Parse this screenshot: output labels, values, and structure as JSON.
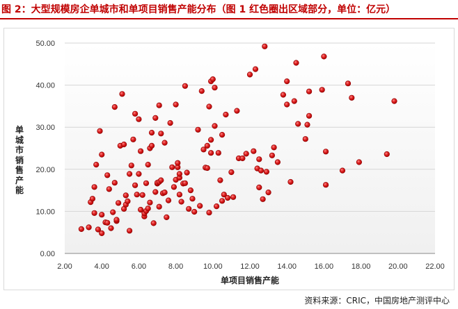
{
  "header": {
    "title": "图 2：大型规模房企单城市和单项目销售产能分布（图 1 红色圈出区域部分，单位：亿元）"
  },
  "source": "资料来源：CRIC，中国房地产测评中心",
  "colors": {
    "title": "#c00000",
    "marker": "#d42020",
    "marker_edge": "#8b0000"
  },
  "chart_data": {
    "type": "scatter",
    "xlabel": "单项目销售产能",
    "ylabel": "单城市销售产能",
    "xlim": [
      2,
      22
    ],
    "ylim": [
      0,
      50
    ],
    "x_ticks": [
      "2.00",
      "4.00",
      "6.00",
      "8.00",
      "10.00",
      "12.00",
      "14.00",
      "16.00",
      "18.00",
      "20.00",
      "22.00"
    ],
    "y_ticks": [
      "0.00",
      "10.00",
      "20.00",
      "30.00",
      "40.00",
      "50.00"
    ],
    "grid": "horizontal",
    "points": [
      [
        2.9,
        5.8
      ],
      [
        3.3,
        6.2
      ],
      [
        3.4,
        12.2
      ],
      [
        3.5,
        13.0
      ],
      [
        3.6,
        9.6
      ],
      [
        3.6,
        15.8
      ],
      [
        3.7,
        21.1
      ],
      [
        3.8,
        5.7
      ],
      [
        3.9,
        29.1
      ],
      [
        4.0,
        4.8
      ],
      [
        4.0,
        9.2
      ],
      [
        4.0,
        23.5
      ],
      [
        4.2,
        7.4
      ],
      [
        4.3,
        7.3
      ],
      [
        4.3,
        18.6
      ],
      [
        4.4,
        15.3
      ],
      [
        4.5,
        6.0
      ],
      [
        4.6,
        9.8
      ],
      [
        4.7,
        16.8
      ],
      [
        4.7,
        34.8
      ],
      [
        4.8,
        7.7
      ],
      [
        4.8,
        8.0
      ],
      [
        4.9,
        12.0
      ],
      [
        5.0,
        25.6
      ],
      [
        5.1,
        37.9
      ],
      [
        5.2,
        10.6
      ],
      [
        5.2,
        25.9
      ],
      [
        5.3,
        11.6
      ],
      [
        5.3,
        13.8
      ],
      [
        5.4,
        12.4
      ],
      [
        5.5,
        5.4
      ],
      [
        5.5,
        18.9
      ],
      [
        5.6,
        20.9
      ],
      [
        5.7,
        27.1
      ],
      [
        5.8,
        16.2
      ],
      [
        5.8,
        33.2
      ],
      [
        5.9,
        14.0
      ],
      [
        6.0,
        31.9
      ],
      [
        6.0,
        18.9
      ],
      [
        6.1,
        24.3
      ],
      [
        6.1,
        10.4
      ],
      [
        6.2,
        13.9
      ],
      [
        6.3,
        8.8
      ],
      [
        6.3,
        9.5
      ],
      [
        6.4,
        10.1
      ],
      [
        6.4,
        16.7
      ],
      [
        6.5,
        21.1
      ],
      [
        6.5,
        10.7
      ],
      [
        6.6,
        12.1
      ],
      [
        6.6,
        25.0
      ],
      [
        6.7,
        25.6
      ],
      [
        6.7,
        28.7
      ],
      [
        6.8,
        7.2
      ],
      [
        6.9,
        14.6
      ],
      [
        6.9,
        32.2
      ],
      [
        7.0,
        16.6
      ],
      [
        7.0,
        16.8
      ],
      [
        7.1,
        17.0
      ],
      [
        7.1,
        11.1
      ],
      [
        7.1,
        35.2
      ],
      [
        7.2,
        17.4
      ],
      [
        7.2,
        28.5
      ],
      [
        7.3,
        14.3
      ],
      [
        7.4,
        14.5
      ],
      [
        7.4,
        26.3
      ],
      [
        7.5,
        8.6
      ],
      [
        7.6,
        12.6
      ],
      [
        7.7,
        31.0
      ],
      [
        7.8,
        20.5
      ],
      [
        7.9,
        15.8
      ],
      [
        8.0,
        17.5
      ],
      [
        8.0,
        35.4
      ],
      [
        8.1,
        20.5
      ],
      [
        8.1,
        21.5
      ],
      [
        8.2,
        18.0
      ],
      [
        8.2,
        18.9
      ],
      [
        8.2,
        14.0
      ],
      [
        8.3,
        12.3
      ],
      [
        8.4,
        16.6
      ],
      [
        8.5,
        16.7
      ],
      [
        8.5,
        39.8
      ],
      [
        8.6,
        19.2
      ],
      [
        8.7,
        10.6
      ],
      [
        8.8,
        15.0
      ],
      [
        8.9,
        13.0
      ],
      [
        9.0,
        9.9
      ],
      [
        9.2,
        29.4
      ],
      [
        9.3,
        11.3
      ],
      [
        9.4,
        38.6
      ],
      [
        9.5,
        24.7
      ],
      [
        9.6,
        20.4
      ],
      [
        9.7,
        20.3
      ],
      [
        9.7,
        25.6
      ],
      [
        9.8,
        34.9
      ],
      [
        9.8,
        9.7
      ],
      [
        9.9,
        27.0
      ],
      [
        9.9,
        40.9
      ],
      [
        9.9,
        23.9
      ],
      [
        10.0,
        41.4
      ],
      [
        10.1,
        39.4
      ],
      [
        10.1,
        30.3
      ],
      [
        10.2,
        11.2
      ],
      [
        10.3,
        23.9
      ],
      [
        10.4,
        17.4
      ],
      [
        10.5,
        28.2
      ],
      [
        10.5,
        12.5
      ],
      [
        10.6,
        14.0
      ],
      [
        10.7,
        33.0
      ],
      [
        10.8,
        13.2
      ],
      [
        11.0,
        19.3
      ],
      [
        11.1,
        13.4
      ],
      [
        11.3,
        33.9
      ],
      [
        11.4,
        22.6
      ],
      [
        11.6,
        22.6
      ],
      [
        11.8,
        23.7
      ],
      [
        12.0,
        42.5
      ],
      [
        12.2,
        24.3
      ],
      [
        12.3,
        43.8
      ],
      [
        12.4,
        20.2
      ],
      [
        12.5,
        22.4
      ],
      [
        12.5,
        15.7
      ],
      [
        12.6,
        19.7
      ],
      [
        12.7,
        12.9
      ],
      [
        12.8,
        49.2
      ],
      [
        12.9,
        19.4
      ],
      [
        13.0,
        14.5
      ],
      [
        13.2,
        23.3
      ],
      [
        13.3,
        25.2
      ],
      [
        13.5,
        21.7
      ],
      [
        13.8,
        37.7
      ],
      [
        14.0,
        35.4
      ],
      [
        14.0,
        40.9
      ],
      [
        14.2,
        17.0
      ],
      [
        14.4,
        36.2
      ],
      [
        14.5,
        45.3
      ],
      [
        14.6,
        30.8
      ],
      [
        15.0,
        27.2
      ],
      [
        15.1,
        30.6
      ],
      [
        15.2,
        32.7
      ],
      [
        15.2,
        38.5
      ],
      [
        15.9,
        38.9
      ],
      [
        16.0,
        46.8
      ],
      [
        16.1,
        24.2
      ],
      [
        16.1,
        16.3
      ],
      [
        17.0,
        19.7
      ],
      [
        17.3,
        40.4
      ],
      [
        17.5,
        37.0
      ],
      [
        17.9,
        21.7
      ],
      [
        19.4,
        23.6
      ],
      [
        19.8,
        36.2
      ]
    ]
  }
}
